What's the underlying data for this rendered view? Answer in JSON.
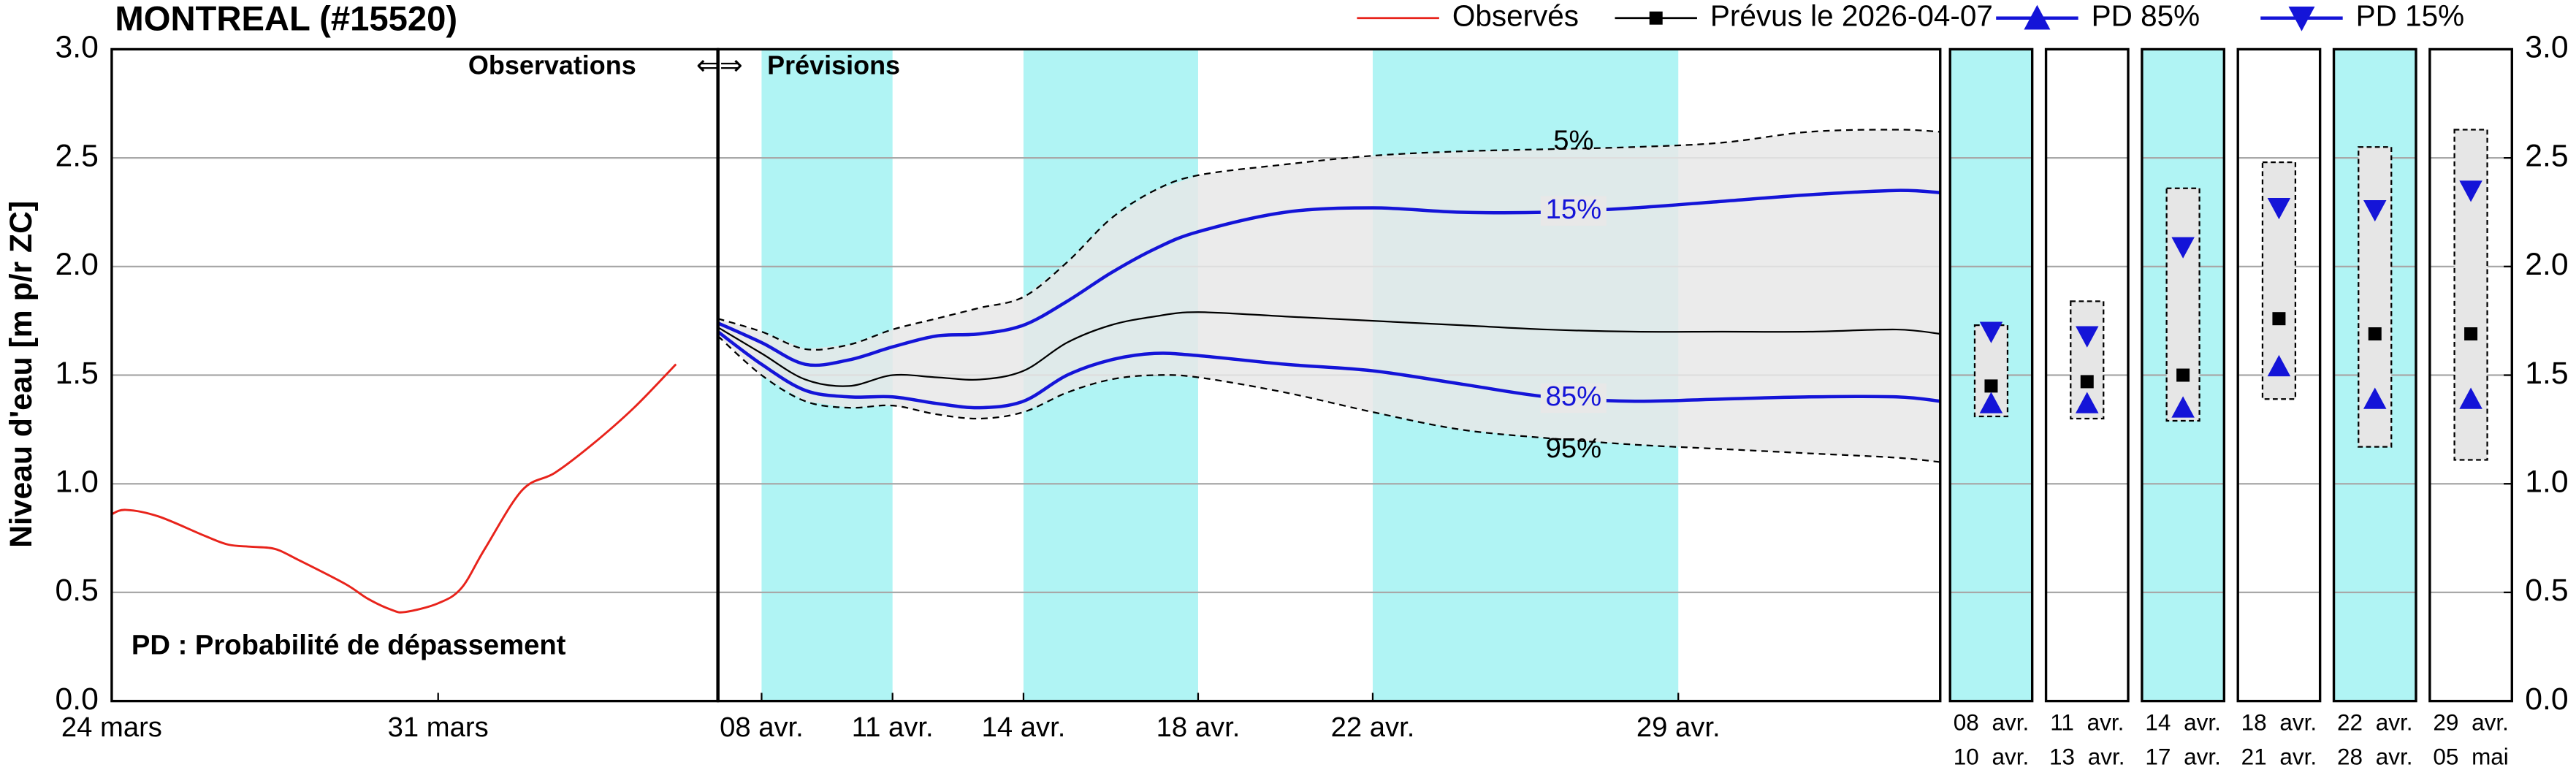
{
  "chart_data": [
    {
      "type": "line",
      "title": "MONTREAL (#15520)",
      "ylabel": "Niveau d'eau [m p/r ZC]",
      "xlim": [
        0,
        13
      ],
      "xticks": [
        {
          "value": 0,
          "label": "24 mars"
        },
        {
          "value": 7,
          "label": "31 mars"
        }
      ],
      "ylim": [
        0,
        3
      ],
      "yticks": [
        {
          "value": 0,
          "label": "0.0"
        },
        0.5,
        {
          "value": 1,
          "label": "1.0"
        },
        1.5,
        {
          "value": 2,
          "label": "2.0"
        },
        2.5,
        {
          "value": 3,
          "label": "3.0"
        }
      ],
      "grid": true,
      "annotations": [
        "Observations",
        "PD : Probabilité de dépassement"
      ],
      "series": [
        {
          "name": "Observés",
          "color": "#e8231b",
          "x": [
            0,
            0.3,
            1,
            2,
            2.5,
            3,
            3.5,
            4,
            5,
            5.5,
            6,
            6.3,
            7,
            7.5,
            8,
            8.8,
            9.5,
            10.3,
            11.2,
            12.1
          ],
          "values": [
            0.86,
            0.88,
            0.85,
            0.76,
            0.72,
            0.71,
            0.7,
            0.65,
            0.54,
            0.47,
            0.42,
            0.41,
            0.45,
            0.52,
            0.7,
            0.97,
            1.05,
            1.18,
            1.35,
            1.55
          ]
        }
      ]
    },
    {
      "type": "fan",
      "xlim": [
        -1,
        27
      ],
      "xticks": [
        {
          "value": 0,
          "label": "08 avr."
        },
        {
          "value": 3,
          "label": "11 avr."
        },
        {
          "value": 6,
          "label": "14 avr."
        },
        {
          "value": 10,
          "label": "18 avr."
        },
        {
          "value": 14,
          "label": "22 avr."
        },
        {
          "value": 21,
          "label": "29 avr."
        }
      ],
      "highlight_color": "#b0f4f4",
      "highlight_periods": [
        [
          0,
          3
        ],
        [
          6,
          10
        ],
        [
          14,
          21
        ]
      ],
      "band_color": "#e8e8e8",
      "annotations": [
        "⇐⇒",
        "Prévisions"
      ],
      "x": [
        -1,
        0,
        1,
        2,
        3,
        4,
        5,
        6,
        7,
        8,
        9,
        10,
        12,
        14,
        16,
        18,
        20,
        22,
        24,
        26,
        27
      ],
      "series": [
        {
          "name": "5%",
          "color": "#000000",
          "dash": true,
          "values": [
            1.76,
            1.7,
            1.62,
            1.64,
            1.71,
            1.76,
            1.81,
            1.86,
            2.02,
            2.22,
            2.35,
            2.42,
            2.47,
            2.51,
            2.53,
            2.54,
            2.55,
            2.57,
            2.62,
            2.63,
            2.62
          ]
        },
        {
          "name": "15%",
          "color": "#1414d8",
          "dash": false,
          "values": [
            1.74,
            1.65,
            1.55,
            1.57,
            1.63,
            1.68,
            1.69,
            1.73,
            1.84,
            1.97,
            2.08,
            2.16,
            2.25,
            2.27,
            2.25,
            2.25,
            2.27,
            2.3,
            2.33,
            2.35,
            2.34
          ]
        },
        {
          "color": "#000000",
          "dash": false,
          "values": [
            1.72,
            1.6,
            1.48,
            1.45,
            1.5,
            1.49,
            1.48,
            1.52,
            1.65,
            1.73,
            1.77,
            1.79,
            1.77,
            1.75,
            1.73,
            1.71,
            1.7,
            1.7,
            1.7,
            1.71,
            1.69
          ]
        },
        {
          "name": "85%",
          "color": "#1414d8",
          "dash": false,
          "values": [
            1.7,
            1.55,
            1.43,
            1.4,
            1.4,
            1.37,
            1.35,
            1.38,
            1.5,
            1.57,
            1.6,
            1.59,
            1.55,
            1.52,
            1.46,
            1.4,
            1.38,
            1.39,
            1.4,
            1.4,
            1.38
          ]
        },
        {
          "name": "95%",
          "color": "#000000",
          "dash": true,
          "values": [
            1.68,
            1.5,
            1.38,
            1.35,
            1.36,
            1.32,
            1.3,
            1.33,
            1.42,
            1.48,
            1.5,
            1.49,
            1.42,
            1.33,
            1.25,
            1.21,
            1.18,
            1.16,
            1.14,
            1.12,
            1.1
          ]
        }
      ]
    },
    {
      "type": "box",
      "categories": [
        [
          "08 avr.",
          "10 avr."
        ],
        [
          "11 avr.",
          "13 avr."
        ],
        [
          "14 avr.",
          "17 avr."
        ],
        [
          "18 avr.",
          "21 avr."
        ],
        [
          "22 avr.",
          "28 avr."
        ],
        [
          "29 avr.",
          "05 mai"
        ]
      ],
      "highlight": [
        true,
        false,
        true,
        false,
        true,
        false
      ],
      "ylim": [
        0,
        3
      ],
      "yticks": [
        {
          "value": 0,
          "label": "0.0"
        },
        0.5,
        {
          "value": 1,
          "label": "1.0"
        },
        1.5,
        {
          "value": 2,
          "label": "2.0"
        },
        2.5,
        {
          "value": 3,
          "label": "3.0"
        }
      ],
      "box_color": "#e6e6e6",
      "low": [
        1.31,
        1.3,
        1.29,
        1.39,
        1.17,
        1.11
      ],
      "high": [
        1.73,
        1.84,
        2.36,
        2.48,
        2.55,
        2.63
      ],
      "series": [
        {
          "name": "PD 15%",
          "color": "#1414d8",
          "marker": "triangle-down",
          "values": [
            1.7,
            1.68,
            2.09,
            2.27,
            2.26,
            2.35
          ]
        },
        {
          "name": "Prévus le 2026-04-07",
          "color": "#000000",
          "marker": "square",
          "values": [
            1.45,
            1.47,
            1.5,
            1.76,
            1.69,
            1.69
          ]
        },
        {
          "name": "PD 85%",
          "color": "#1414d8",
          "marker": "triangle-up",
          "values": [
            1.37,
            1.37,
            1.35,
            1.54,
            1.39,
            1.39
          ]
        }
      ]
    }
  ]
}
